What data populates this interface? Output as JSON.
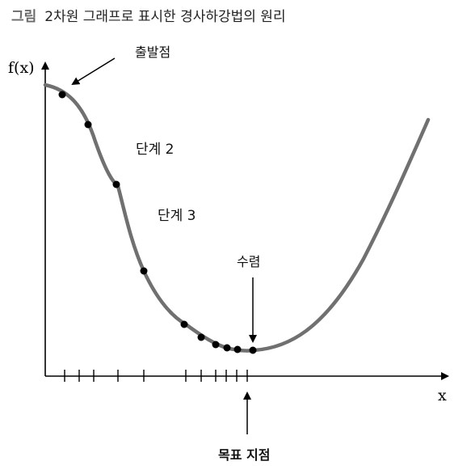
{
  "caption": {
    "label": "그림",
    "title": "2차원 그래프로 표시한 경사하강법의 원리"
  },
  "axes": {
    "y_label": "f(x)",
    "x_label": "x"
  },
  "annotations": {
    "start": "출발점",
    "step2": "단계 2",
    "step3": "단계 3",
    "converge": "수렴",
    "target": "목표 지점"
  },
  "colors": {
    "curve": "#707070",
    "points": "#000000",
    "axis": "#000000"
  }
}
